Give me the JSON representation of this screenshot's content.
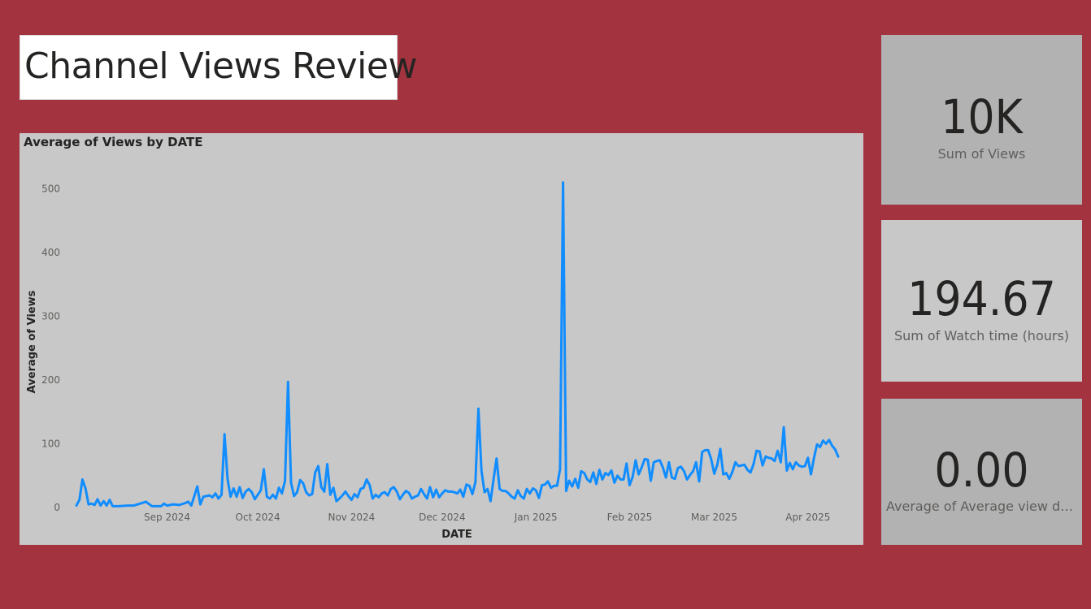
{
  "report": {
    "title": "Channel Views Review",
    "background_color": "#a2333f"
  },
  "kpis": [
    {
      "value": "10K",
      "label": "Sum of Views"
    },
    {
      "value": "194.67",
      "label": "Sum of Watch time (hours)"
    },
    {
      "value": "0.00",
      "label": "Average of Average view dur..."
    }
  ],
  "chart_data": {
    "type": "line",
    "title": "Average of Views by DATE",
    "xlabel": "DATE",
    "ylabel": "Average of Views",
    "ylim": [
      0,
      520
    ],
    "y_ticks": [
      0,
      100,
      200,
      300,
      400,
      500
    ],
    "x_ticks": [
      {
        "label": "Sep 2024",
        "date": "2024-09-01"
      },
      {
        "label": "Oct 2024",
        "date": "2024-10-01"
      },
      {
        "label": "Nov 2024",
        "date": "2024-11-01"
      },
      {
        "label": "Dec 2024",
        "date": "2024-12-01"
      },
      {
        "label": "Jan 2025",
        "date": "2025-01-01"
      },
      {
        "label": "Feb 2025",
        "date": "2025-02-01"
      },
      {
        "label": "Mar 2025",
        "date": "2025-03-01"
      },
      {
        "label": "Apr 2025",
        "date": "2025-04-01"
      }
    ],
    "xlim": [
      "2024-08-02",
      "2025-04-11"
    ],
    "line_color": "#118dff",
    "grid": false,
    "series": [
      {
        "points": [
          [
            "2024-08-02",
            3
          ],
          [
            "2024-08-03",
            12
          ],
          [
            "2024-08-04",
            44
          ],
          [
            "2024-08-05",
            30
          ],
          [
            "2024-08-06",
            5
          ],
          [
            "2024-08-07",
            6
          ],
          [
            "2024-08-08",
            4
          ],
          [
            "2024-08-09",
            13
          ],
          [
            "2024-08-10",
            3
          ],
          [
            "2024-08-11",
            10
          ],
          [
            "2024-08-12",
            3
          ],
          [
            "2024-08-13",
            12
          ],
          [
            "2024-08-14",
            2
          ],
          [
            "2024-08-16",
            2
          ],
          [
            "2024-08-19",
            3
          ],
          [
            "2024-08-21",
            3
          ],
          [
            "2024-08-23",
            6
          ],
          [
            "2024-08-25",
            9
          ],
          [
            "2024-08-27",
            2
          ],
          [
            "2024-08-30",
            2
          ],
          [
            "2024-08-31",
            6
          ],
          [
            "2024-09-01",
            3
          ],
          [
            "2024-09-03",
            5
          ],
          [
            "2024-09-05",
            4
          ],
          [
            "2024-09-07",
            7
          ],
          [
            "2024-09-08",
            9
          ],
          [
            "2024-09-09",
            3
          ],
          [
            "2024-09-10",
            18
          ],
          [
            "2024-09-11",
            33
          ],
          [
            "2024-09-12",
            5
          ],
          [
            "2024-09-13",
            17
          ],
          [
            "2024-09-14",
            18
          ],
          [
            "2024-09-15",
            19
          ],
          [
            "2024-09-16",
            16
          ],
          [
            "2024-09-17",
            22
          ],
          [
            "2024-09-18",
            14
          ],
          [
            "2024-09-19",
            20
          ],
          [
            "2024-09-20",
            115
          ],
          [
            "2024-09-21",
            45
          ],
          [
            "2024-09-22",
            17
          ],
          [
            "2024-09-23",
            30
          ],
          [
            "2024-09-24",
            17
          ],
          [
            "2024-09-25",
            32
          ],
          [
            "2024-09-26",
            15
          ],
          [
            "2024-09-27",
            25
          ],
          [
            "2024-09-28",
            29
          ],
          [
            "2024-09-29",
            24
          ],
          [
            "2024-09-30",
            13
          ],
          [
            "2024-10-01",
            20
          ],
          [
            "2024-10-02",
            27
          ],
          [
            "2024-10-03",
            60
          ],
          [
            "2024-10-04",
            17
          ],
          [
            "2024-10-05",
            14
          ],
          [
            "2024-10-06",
            20
          ],
          [
            "2024-10-07",
            14
          ],
          [
            "2024-10-08",
            31
          ],
          [
            "2024-10-09",
            22
          ],
          [
            "2024-10-10",
            42
          ],
          [
            "2024-10-11",
            197
          ],
          [
            "2024-10-12",
            39
          ],
          [
            "2024-10-13",
            18
          ],
          [
            "2024-10-14",
            24
          ],
          [
            "2024-10-15",
            43
          ],
          [
            "2024-10-16",
            38
          ],
          [
            "2024-10-17",
            24
          ],
          [
            "2024-10-18",
            19
          ],
          [
            "2024-10-19",
            21
          ],
          [
            "2024-10-20",
            55
          ],
          [
            "2024-10-21",
            65
          ],
          [
            "2024-10-22",
            32
          ],
          [
            "2024-10-23",
            25
          ],
          [
            "2024-10-24",
            68
          ],
          [
            "2024-10-25",
            20
          ],
          [
            "2024-10-26",
            31
          ],
          [
            "2024-10-27",
            10
          ],
          [
            "2024-10-28",
            14
          ],
          [
            "2024-10-29",
            19
          ],
          [
            "2024-10-30",
            25
          ],
          [
            "2024-10-31",
            18
          ],
          [
            "2024-11-01",
            12
          ],
          [
            "2024-11-02",
            21
          ],
          [
            "2024-11-03",
            16
          ],
          [
            "2024-11-04",
            29
          ],
          [
            "2024-11-05",
            31
          ],
          [
            "2024-11-06",
            44
          ],
          [
            "2024-11-07",
            35
          ],
          [
            "2024-11-08",
            14
          ],
          [
            "2024-11-09",
            20
          ],
          [
            "2024-11-10",
            16
          ],
          [
            "2024-11-11",
            22
          ],
          [
            "2024-11-12",
            24
          ],
          [
            "2024-11-13",
            19
          ],
          [
            "2024-11-14",
            29
          ],
          [
            "2024-11-15",
            32
          ],
          [
            "2024-11-16",
            25
          ],
          [
            "2024-11-17",
            13
          ],
          [
            "2024-11-18",
            20
          ],
          [
            "2024-11-19",
            26
          ],
          [
            "2024-11-20",
            23
          ],
          [
            "2024-11-21",
            14
          ],
          [
            "2024-11-22",
            17
          ],
          [
            "2024-11-23",
            19
          ],
          [
            "2024-11-24",
            29
          ],
          [
            "2024-11-25",
            21
          ],
          [
            "2024-11-26",
            14
          ],
          [
            "2024-11-27",
            32
          ],
          [
            "2024-11-28",
            16
          ],
          [
            "2024-11-29",
            28
          ],
          [
            "2024-11-30",
            16
          ],
          [
            "2024-12-01",
            22
          ],
          [
            "2024-12-02",
            27
          ],
          [
            "2024-12-03",
            25
          ],
          [
            "2024-12-04",
            25
          ],
          [
            "2024-12-05",
            24
          ],
          [
            "2024-12-06",
            22
          ],
          [
            "2024-12-07",
            28
          ],
          [
            "2024-12-08",
            17
          ],
          [
            "2024-12-09",
            36
          ],
          [
            "2024-12-10",
            34
          ],
          [
            "2024-12-11",
            21
          ],
          [
            "2024-12-12",
            40
          ],
          [
            "2024-12-13",
            155
          ],
          [
            "2024-12-14",
            58
          ],
          [
            "2024-12-15",
            24
          ],
          [
            "2024-12-16",
            29
          ],
          [
            "2024-12-17",
            10
          ],
          [
            "2024-12-18",
            44
          ],
          [
            "2024-12-19",
            77
          ],
          [
            "2024-12-20",
            29
          ],
          [
            "2024-12-21",
            26
          ],
          [
            "2024-12-22",
            26
          ],
          [
            "2024-12-23",
            22
          ],
          [
            "2024-12-24",
            17
          ],
          [
            "2024-12-25",
            14
          ],
          [
            "2024-12-26",
            27
          ],
          [
            "2024-12-27",
            18
          ],
          [
            "2024-12-28",
            14
          ],
          [
            "2024-12-29",
            29
          ],
          [
            "2024-12-30",
            22
          ],
          [
            "2024-12-31",
            30
          ],
          [
            "2025-01-01",
            27
          ],
          [
            "2025-01-02",
            15
          ],
          [
            "2025-01-03",
            35
          ],
          [
            "2025-01-04",
            36
          ],
          [
            "2025-01-05",
            41
          ],
          [
            "2025-01-06",
            31
          ],
          [
            "2025-01-07",
            34
          ],
          [
            "2025-01-08",
            34
          ],
          [
            "2025-01-09",
            60
          ],
          [
            "2025-01-10",
            510
          ],
          [
            "2025-01-11",
            26
          ],
          [
            "2025-01-12",
            42
          ],
          [
            "2025-01-13",
            33
          ],
          [
            "2025-01-14",
            45
          ],
          [
            "2025-01-15",
            31
          ],
          [
            "2025-01-16",
            57
          ],
          [
            "2025-01-17",
            54
          ],
          [
            "2025-01-18",
            44
          ],
          [
            "2025-01-19",
            40
          ],
          [
            "2025-01-20",
            55
          ],
          [
            "2025-01-21",
            37
          ],
          [
            "2025-01-22",
            59
          ],
          [
            "2025-01-23",
            44
          ],
          [
            "2025-01-24",
            54
          ],
          [
            "2025-01-25",
            51
          ],
          [
            "2025-01-26",
            58
          ],
          [
            "2025-01-27",
            39
          ],
          [
            "2025-01-28",
            50
          ],
          [
            "2025-01-29",
            44
          ],
          [
            "2025-01-30",
            44
          ],
          [
            "2025-01-31",
            69
          ],
          [
            "2025-02-01",
            35
          ],
          [
            "2025-02-02",
            48
          ],
          [
            "2025-02-03",
            74
          ],
          [
            "2025-02-04",
            52
          ],
          [
            "2025-02-05",
            63
          ],
          [
            "2025-02-06",
            76
          ],
          [
            "2025-02-07",
            75
          ],
          [
            "2025-02-08",
            42
          ],
          [
            "2025-02-09",
            71
          ],
          [
            "2025-02-10",
            73
          ],
          [
            "2025-02-11",
            74
          ],
          [
            "2025-02-12",
            63
          ],
          [
            "2025-02-13",
            47
          ],
          [
            "2025-02-14",
            71
          ],
          [
            "2025-02-15",
            47
          ],
          [
            "2025-02-16",
            45
          ],
          [
            "2025-02-17",
            62
          ],
          [
            "2025-02-18",
            64
          ],
          [
            "2025-02-19",
            57
          ],
          [
            "2025-02-20",
            44
          ],
          [
            "2025-02-21",
            51
          ],
          [
            "2025-02-22",
            57
          ],
          [
            "2025-02-23",
            71
          ],
          [
            "2025-02-24",
            41
          ],
          [
            "2025-02-25",
            87
          ],
          [
            "2025-02-26",
            90
          ],
          [
            "2025-02-27",
            90
          ],
          [
            "2025-02-28",
            76
          ],
          [
            "2025-03-01",
            53
          ],
          [
            "2025-03-02",
            67
          ],
          [
            "2025-03-03",
            92
          ],
          [
            "2025-03-04",
            52
          ],
          [
            "2025-03-05",
            54
          ],
          [
            "2025-03-06",
            45
          ],
          [
            "2025-03-07",
            56
          ],
          [
            "2025-03-08",
            71
          ],
          [
            "2025-03-09",
            65
          ],
          [
            "2025-03-10",
            66
          ],
          [
            "2025-03-11",
            67
          ],
          [
            "2025-03-12",
            59
          ],
          [
            "2025-03-13",
            55
          ],
          [
            "2025-03-14",
            68
          ],
          [
            "2025-03-15",
            89
          ],
          [
            "2025-03-16",
            88
          ],
          [
            "2025-03-17",
            66
          ],
          [
            "2025-03-18",
            80
          ],
          [
            "2025-03-19",
            78
          ],
          [
            "2025-03-20",
            77
          ],
          [
            "2025-03-21",
            73
          ],
          [
            "2025-03-22",
            89
          ],
          [
            "2025-03-23",
            71
          ],
          [
            "2025-03-24",
            126
          ],
          [
            "2025-03-25",
            58
          ],
          [
            "2025-03-26",
            70
          ],
          [
            "2025-03-27",
            60
          ],
          [
            "2025-03-28",
            71
          ],
          [
            "2025-03-29",
            66
          ],
          [
            "2025-03-30",
            64
          ],
          [
            "2025-03-31",
            65
          ],
          [
            "2025-04-01",
            78
          ],
          [
            "2025-04-02",
            52
          ],
          [
            "2025-04-03",
            78
          ],
          [
            "2025-04-04",
            99
          ],
          [
            "2025-04-05",
            95
          ],
          [
            "2025-04-06",
            105
          ],
          [
            "2025-04-07",
            100
          ],
          [
            "2025-04-08",
            106
          ],
          [
            "2025-04-09",
            97
          ],
          [
            "2025-04-10",
            91
          ],
          [
            "2025-04-11",
            80
          ]
        ]
      }
    ]
  }
}
